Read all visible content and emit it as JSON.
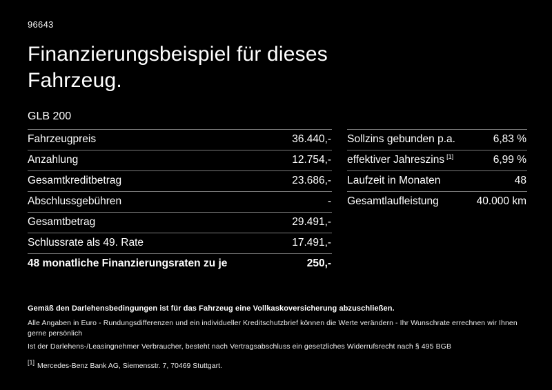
{
  "page": {
    "doc_id": "96643",
    "title": "Finanzierungsbeispiel für dieses Fahrzeug.",
    "model": "GLB 200"
  },
  "left_table": {
    "rows": [
      {
        "label": "Fahrzeugpreis",
        "value": "36.440,-"
      },
      {
        "label": "Anzahlung",
        "value": "12.754,-"
      },
      {
        "label": "Gesamtkreditbetrag",
        "value": "23.686,-"
      },
      {
        "label": "Abschlussgebühren",
        "value": "-"
      },
      {
        "label": "Gesamtbetrag",
        "value": "29.491,-"
      },
      {
        "label": "Schlussrate als 49. Rate",
        "value": "17.491,-"
      },
      {
        "label": "48 monatliche Finanzierungsraten zu je",
        "value": "250,-"
      }
    ]
  },
  "right_table": {
    "rows": [
      {
        "label": "Sollzins gebunden p.a.",
        "sup": "",
        "value": "6,83 %"
      },
      {
        "label": "effektiver Jahreszins",
        "sup": "[1]",
        "value": "6,99 %"
      },
      {
        "label": "Laufzeit in Monaten",
        "sup": "",
        "value": "48"
      },
      {
        "label": "Gesamtlaufleistung",
        "sup": "",
        "value": "40.000 km"
      }
    ]
  },
  "footer": {
    "insurance_note": "Gemäß den Darlehensbedingungen ist für das Fahrzeug eine Vollkaskoversicherung abzuschließen.",
    "disclaimer1": "Alle Angaben in Euro - Rundungsdifferenzen und ein individueller Kreditschutzbrief können die Werte verändern - Ihr Wunschrate errechnen wir Ihnen gerne persönlich",
    "disclaimer2": "Ist der Darlehens-/Leasingnehmer Verbraucher, besteht nach Vertragsabschluss ein gesetzliches Widerrufsrecht nach § 495 BGB",
    "footnote_marker": "[1]",
    "footnote_text": "Mercedes-Benz Bank AG, Siemensstr. 7, 70469 Stuttgart."
  }
}
